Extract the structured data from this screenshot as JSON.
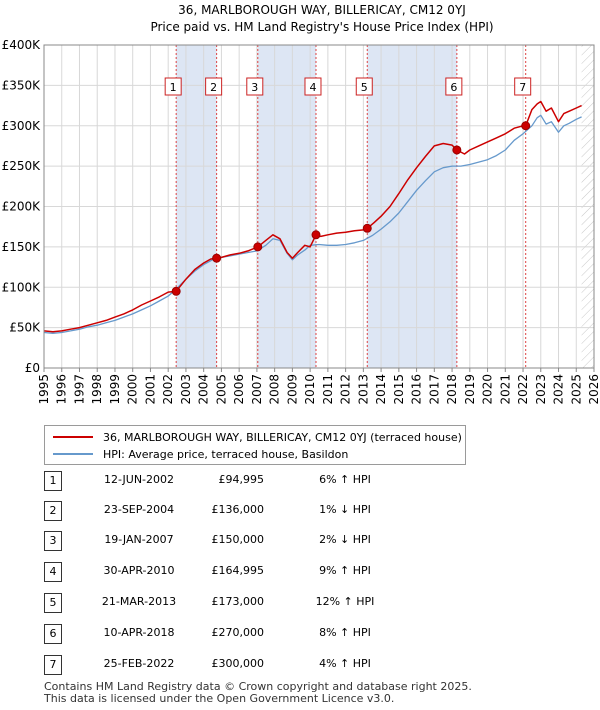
{
  "chart_data": {
    "type": "line",
    "title": "36, MARLBOROUGH WAY, BILLERICAY, CM12 0YJ",
    "subtitle": "Price paid vs. HM Land Registry's House Price Index (HPI)",
    "xlim": [
      1995,
      2026
    ],
    "ylim": [
      0,
      400000
    ],
    "x_ticks": [
      "1995",
      "1996",
      "1997",
      "1998",
      "1999",
      "2000",
      "2001",
      "2002",
      "2003",
      "2004",
      "2005",
      "2006",
      "2007",
      "2008",
      "2009",
      "2010",
      "2011",
      "2012",
      "2013",
      "2014",
      "2015",
      "2016",
      "2017",
      "2018",
      "2019",
      "2020",
      "2021",
      "2022",
      "2023",
      "2024",
      "2025",
      "2026"
    ],
    "y_ticks": [
      {
        "value": 0,
        "label": "£0"
      },
      {
        "value": 50000,
        "label": "£50K"
      },
      {
        "value": 100000,
        "label": "£100K"
      },
      {
        "value": 150000,
        "label": "£150K"
      },
      {
        "value": 200000,
        "label": "£200K"
      },
      {
        "value": 250000,
        "label": "£250K"
      },
      {
        "value": 300000,
        "label": "£300K"
      },
      {
        "value": 350000,
        "label": "£350K"
      },
      {
        "value": 400000,
        "label": "£400K"
      }
    ],
    "hatched_after": 2025.3,
    "series": [
      {
        "name": "36, MARLBOROUGH WAY, BILLERICAY, CM12 0YJ (terraced house)",
        "color": "#cc0000",
        "x": [
          1995,
          1995.5,
          1996,
          1996.5,
          1997,
          1997.5,
          1998,
          1998.5,
          1999,
          1999.5,
          2000,
          2000.5,
          2001,
          2001.5,
          2002,
          2002.45,
          2003,
          2003.5,
          2004,
          2004.4,
          2004.73,
          2005,
          2005.5,
          2006,
          2006.5,
          2007.05,
          2007.5,
          2007.9,
          2008.3,
          2008.7,
          2009,
          2009.3,
          2009.7,
          2010,
          2010.33,
          2010.6,
          2011,
          2011.5,
          2012,
          2012.5,
          2013,
          2013.22,
          2013.6,
          2014,
          2014.5,
          2015,
          2015.5,
          2016,
          2016.5,
          2017,
          2017.5,
          2018,
          2018.27,
          2018.7,
          2019,
          2019.5,
          2020,
          2020.5,
          2021,
          2021.5,
          2022,
          2022.15,
          2022.5,
          2022.8,
          2023,
          2023.3,
          2023.6,
          2024,
          2024.3,
          2024.6,
          2025,
          2025.3
        ],
        "values": [
          46000,
          45000,
          46000,
          48000,
          50000,
          53000,
          56000,
          59000,
          63000,
          67000,
          72000,
          78000,
          83000,
          88000,
          94000,
          94995,
          110000,
          122000,
          130000,
          135000,
          136000,
          137000,
          140000,
          142000,
          145000,
          150000,
          158000,
          165000,
          160000,
          143000,
          136000,
          143000,
          152000,
          150000,
          164995,
          163000,
          165000,
          167000,
          168000,
          170000,
          171000,
          173000,
          180000,
          188000,
          200000,
          216000,
          233000,
          248000,
          262000,
          275000,
          278000,
          276000,
          270000,
          265000,
          270000,
          275000,
          280000,
          285000,
          290000,
          297000,
          300000,
          300000,
          320000,
          327000,
          330000,
          318000,
          322000,
          305000,
          315000,
          318000,
          322000,
          325000
        ]
      },
      {
        "name": "HPI: Average price, terraced house, Basildon",
        "color": "#6699cc",
        "x": [
          1995,
          1995.5,
          1996,
          1996.5,
          1997,
          1997.5,
          1998,
          1998.5,
          1999,
          1999.5,
          2000,
          2000.5,
          2001,
          2001.5,
          2002,
          2002.5,
          2003,
          2003.5,
          2004,
          2004.5,
          2005,
          2005.5,
          2006,
          2006.5,
          2007,
          2007.5,
          2007.9,
          2008.3,
          2008.7,
          2009,
          2009.3,
          2009.7,
          2010,
          2010.5,
          2011,
          2011.5,
          2012,
          2012.5,
          2013,
          2013.5,
          2014,
          2014.5,
          2015,
          2015.5,
          2016,
          2016.5,
          2017,
          2017.5,
          2018,
          2018.5,
          2019,
          2019.5,
          2020,
          2020.5,
          2021,
          2021.5,
          2022,
          2022.5,
          2022.8,
          2023,
          2023.3,
          2023.6,
          2024,
          2024.3,
          2024.6,
          2025,
          2025.3
        ],
        "values": [
          44000,
          43000,
          44000,
          46000,
          48000,
          51000,
          53000,
          56000,
          59000,
          63000,
          67000,
          72000,
          77000,
          83000,
          89000,
          99000,
          110000,
          120000,
          128000,
          134000,
          137000,
          139000,
          141000,
          143000,
          145000,
          152000,
          160000,
          158000,
          142000,
          134000,
          140000,
          146000,
          152000,
          153000,
          152000,
          152000,
          153000,
          155000,
          158000,
          164000,
          172000,
          181000,
          192000,
          206000,
          220000,
          232000,
          243000,
          248000,
          250000,
          250000,
          252000,
          255000,
          258000,
          263000,
          270000,
          282000,
          290000,
          300000,
          310000,
          313000,
          302000,
          305000,
          292000,
          300000,
          303000,
          308000,
          311000
        ]
      }
    ],
    "sales": [
      {
        "n": "1",
        "x": 2002.45,
        "price": 94995
      },
      {
        "n": "2",
        "x": 2004.73,
        "price": 136000
      },
      {
        "n": "3",
        "x": 2007.05,
        "price": 150000
      },
      {
        "n": "4",
        "x": 2010.33,
        "price": 164995
      },
      {
        "n": "5",
        "x": 2013.22,
        "price": 173000
      },
      {
        "n": "6",
        "x": 2018.27,
        "price": 270000
      },
      {
        "n": "7",
        "x": 2022.15,
        "price": 300000
      }
    ]
  },
  "legend": {
    "property_label": "36, MARLBOROUGH WAY, BILLERICAY, CM12 0YJ (terraced house)",
    "hpi_label": "HPI: Average price, terraced house, Basildon",
    "property_color": "#cc0000",
    "hpi_color": "#6699cc"
  },
  "sales_table": [
    {
      "n": "1",
      "date": "12-JUN-2002",
      "price": "£94,995",
      "hpi": "6% ↑ HPI"
    },
    {
      "n": "2",
      "date": "23-SEP-2004",
      "price": "£136,000",
      "hpi": "1% ↓ HPI"
    },
    {
      "n": "3",
      "date": "19-JAN-2007",
      "price": "£150,000",
      "hpi": "2% ↓ HPI"
    },
    {
      "n": "4",
      "date": "30-APR-2010",
      "price": "£164,995",
      "hpi": "9% ↑ HPI"
    },
    {
      "n": "5",
      "date": "21-MAR-2013",
      "price": "£173,000",
      "hpi": "12% ↑ HPI"
    },
    {
      "n": "6",
      "date": "10-APR-2018",
      "price": "£270,000",
      "hpi": "8% ↑ HPI"
    },
    {
      "n": "7",
      "date": "25-FEB-2022",
      "price": "£300,000",
      "hpi": "4% ↑ HPI"
    }
  ],
  "footer": {
    "line1": "Contains HM Land Registry data © Crown copyright and database right 2025.",
    "line2": "This data is licensed under the Open Government Licence v3.0."
  }
}
